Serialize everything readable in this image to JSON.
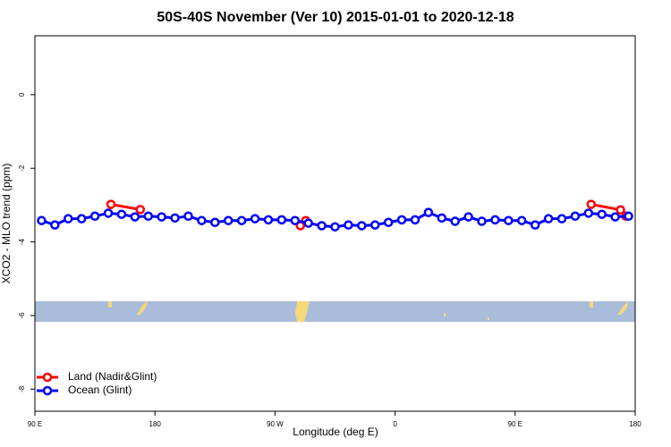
{
  "chart_data": {
    "type": "line",
    "title": "50S-40S November (Ver 10)   2015-01-01 to 2020-12-18",
    "x_label": "Longitude (deg E)",
    "y_label": "XCO2 - MLO trend (ppm)",
    "xlim": [
      90,
      540
    ],
    "ylim": [
      -8.6,
      1.6
    ],
    "xticks": [
      {
        "value": 90,
        "label": "90 E"
      },
      {
        "value": 180,
        "label": "180"
      },
      {
        "value": 270,
        "label": "90 W"
      },
      {
        "value": 360,
        "label": "0"
      },
      {
        "value": 450,
        "label": "90 E"
      },
      {
        "value": 540,
        "label": "180"
      }
    ],
    "yticks": [
      0,
      -2,
      -4,
      -6,
      -8
    ],
    "legend": "bottom-left",
    "series": [
      {
        "name": "Land (Nadir&Glint)",
        "color": "#ff0000",
        "x": [
          147,
          169,
          289,
          293,
          507,
          529,
          533
        ],
        "values": [
          -2.98,
          -3.12,
          -3.56,
          -3.42,
          -2.98,
          -3.13,
          -3.3
        ]
      },
      {
        "name": "Ocean (Glint)",
        "color": "#0000ff",
        "x": [
          95,
          105,
          115,
          125,
          135,
          145,
          155,
          165,
          175,
          185,
          195,
          205,
          215,
          225,
          235,
          245,
          255,
          265,
          275,
          285,
          295,
          305,
          315,
          325,
          335,
          345,
          355,
          365,
          375,
          385,
          395,
          405,
          415,
          425,
          435,
          445,
          455,
          465,
          475,
          485,
          495,
          505,
          515,
          525,
          535
        ],
        "values": [
          -3.42,
          -3.54,
          -3.37,
          -3.37,
          -3.3,
          -3.22,
          -3.25,
          -3.32,
          -3.3,
          -3.32,
          -3.35,
          -3.3,
          -3.42,
          -3.47,
          -3.42,
          -3.42,
          -3.37,
          -3.4,
          -3.4,
          -3.42,
          -3.49,
          -3.56,
          -3.59,
          -3.54,
          -3.56,
          -3.54,
          -3.47,
          -3.4,
          -3.4,
          -3.2,
          -3.35,
          -3.44,
          -3.32,
          -3.44,
          -3.4,
          -3.42,
          -3.42,
          -3.54,
          -3.37,
          -3.37,
          -3.3,
          -3.22,
          -3.25,
          -3.32,
          -3.3
        ]
      }
    ]
  }
}
